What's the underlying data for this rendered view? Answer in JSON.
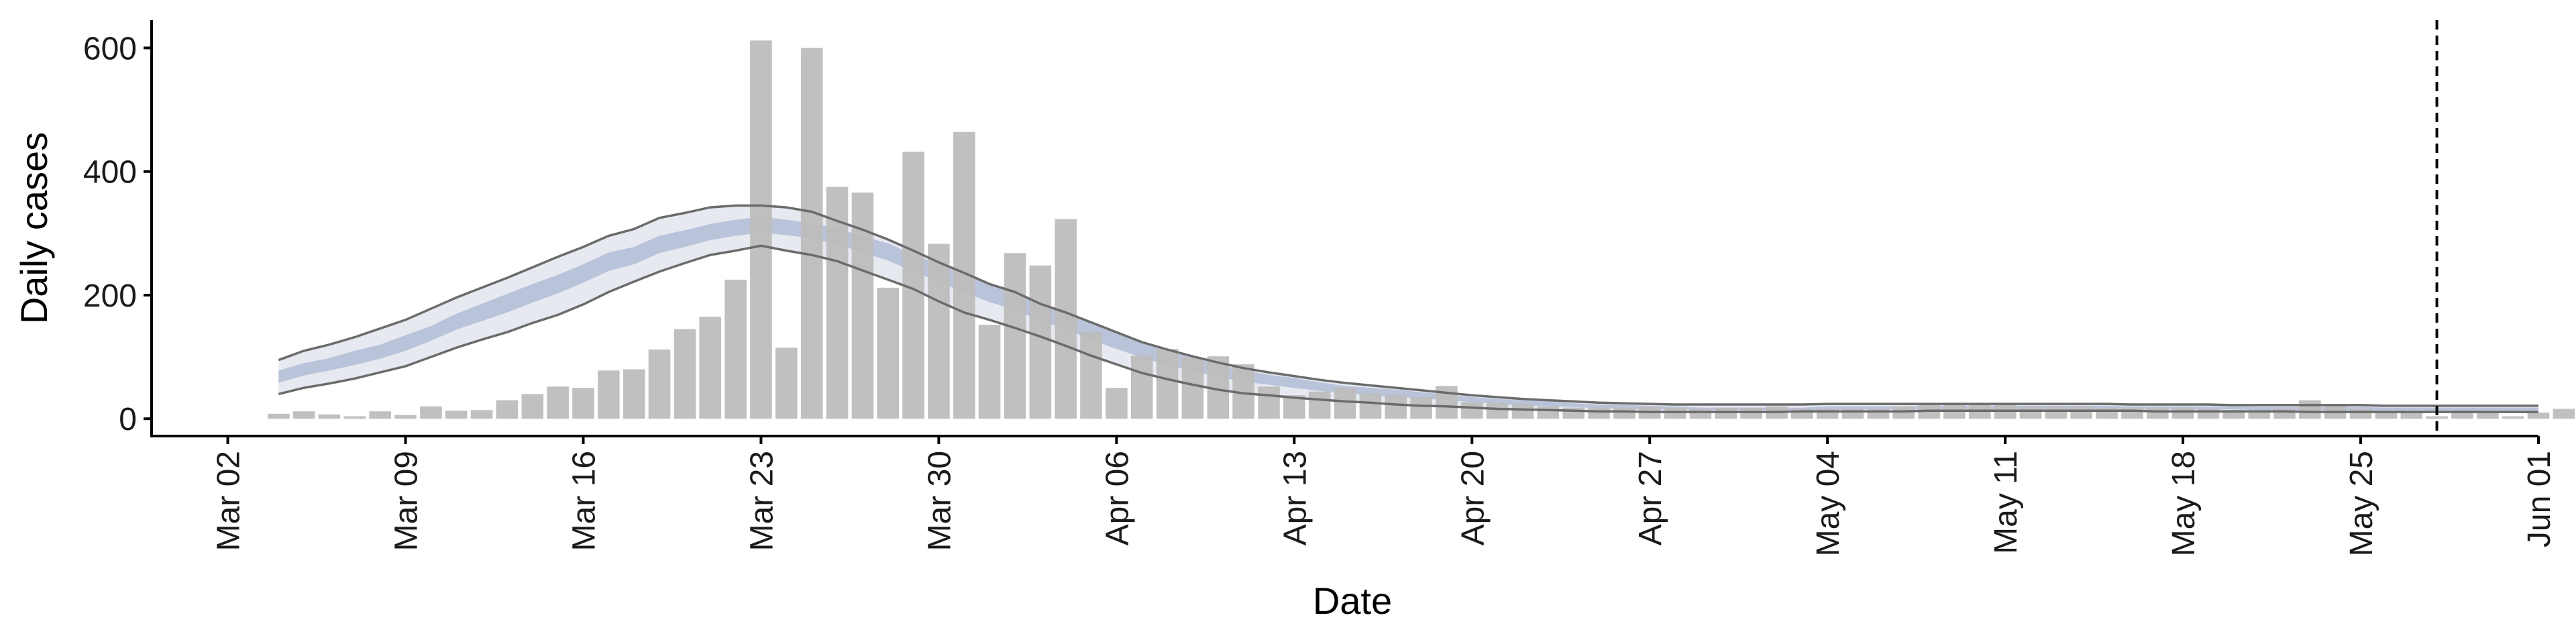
{
  "chart_data": {
    "type": "bar",
    "xlabel": "Date",
    "ylabel": "Daily cases",
    "ylim": [
      -28,
      645
    ],
    "xlim": [
      "2020-02-28",
      "2020-06-01"
    ],
    "y_ticks": [
      0,
      200,
      400,
      600
    ],
    "x_ticks": [
      {
        "date": "2020-03-02",
        "label": "Mar 02"
      },
      {
        "date": "2020-03-09",
        "label": "Mar 09"
      },
      {
        "date": "2020-03-16",
        "label": "Mar 16"
      },
      {
        "date": "2020-03-23",
        "label": "Mar 23"
      },
      {
        "date": "2020-03-30",
        "label": "Mar 30"
      },
      {
        "date": "2020-04-06",
        "label": "Apr 06"
      },
      {
        "date": "2020-04-13",
        "label": "Apr 13"
      },
      {
        "date": "2020-04-20",
        "label": "Apr 20"
      },
      {
        "date": "2020-04-27",
        "label": "Apr 27"
      },
      {
        "date": "2020-05-04",
        "label": "May 04"
      },
      {
        "date": "2020-05-11",
        "label": "May 11"
      },
      {
        "date": "2020-05-18",
        "label": "May 18"
      },
      {
        "date": "2020-05-25",
        "label": "May 25"
      },
      {
        "date": "2020-06-01",
        "label": "Jun 01"
      }
    ],
    "bars": {
      "start_date": "2020-03-04",
      "color": "#bdbdbd",
      "values": [
        8,
        12,
        7,
        4,
        12,
        6,
        20,
        13,
        14,
        30,
        40,
        52,
        50,
        78,
        80,
        112,
        145,
        165,
        225,
        612,
        115,
        600,
        375,
        366,
        212,
        432,
        283,
        464,
        152,
        268,
        248,
        323,
        140,
        50,
        102,
        113,
        99,
        101,
        88,
        52,
        38,
        44,
        50,
        41,
        38,
        35,
        53,
        27,
        25,
        24,
        20,
        18,
        18,
        18,
        20,
        18,
        16,
        18,
        18,
        20,
        16,
        16,
        16,
        16,
        20,
        22,
        24,
        24,
        22,
        20,
        20,
        20,
        18,
        18,
        18,
        18,
        16,
        14,
        14,
        16,
        30,
        20,
        16,
        10,
        12,
        4,
        14,
        12,
        4,
        10,
        16,
        8
      ]
    },
    "band": {
      "start_date": "2020-03-04",
      "outer_color": "#e7e9f1",
      "inner_color": "#b9c3d9",
      "line_color": "#6b6b6b",
      "median": [
        68,
        80,
        88,
        98,
        108,
        122,
        138,
        157,
        172,
        187,
        203,
        218,
        235,
        254,
        264,
        282,
        292,
        302,
        309,
        314,
        309,
        304,
        295,
        282,
        270,
        252,
        236,
        219,
        203,
        190,
        173,
        159,
        141,
        126,
        111,
        99,
        88,
        78,
        69,
        63,
        58,
        52,
        47,
        44,
        41,
        38,
        34,
        31,
        28,
        26,
        24,
        22,
        20,
        19,
        18,
        17,
        16,
        16,
        16,
        16,
        16,
        17,
        17,
        17,
        17,
        18,
        18,
        18,
        18,
        18,
        18,
        18,
        18,
        17,
        17,
        17,
        17,
        17,
        16,
        16,
        16,
        16,
        16,
        15,
        15,
        15,
        15,
        15,
        15,
        15
      ],
      "lower_outer": [
        40,
        50,
        57,
        65,
        75,
        85,
        100,
        115,
        128,
        140,
        155,
        168,
        185,
        205,
        222,
        238,
        252,
        265,
        272,
        280,
        272,
        265,
        255,
        240,
        225,
        210,
        190,
        172,
        160,
        147,
        133,
        118,
        102,
        88,
        74,
        64,
        55,
        47,
        41,
        38,
        34,
        31,
        28,
        26,
        23,
        21,
        20,
        18,
        16,
        15,
        14,
        13,
        12,
        12,
        11,
        11,
        11,
        11,
        11,
        11,
        12,
        12,
        12,
        12,
        12,
        13,
        13,
        13,
        13,
        13,
        13,
        13,
        13,
        13,
        12,
        12,
        12,
        12,
        12,
        12,
        11,
        11,
        11,
        11,
        11,
        11,
        11,
        11,
        11,
        11
      ],
      "upper_outer": [
        95,
        110,
        120,
        132,
        146,
        160,
        178,
        196,
        212,
        228,
        245,
        262,
        278,
        296,
        307,
        325,
        333,
        342,
        345,
        345,
        342,
        335,
        320,
        306,
        290,
        272,
        253,
        236,
        218,
        205,
        186,
        172,
        156,
        140,
        124,
        112,
        101,
        91,
        82,
        75,
        69,
        63,
        58,
        54,
        50,
        46,
        42,
        38,
        35,
        32,
        30,
        28,
        26,
        25,
        24,
        23,
        23,
        23,
        23,
        23,
        23,
        24,
        24,
        24,
        24,
        24,
        24,
        24,
        24,
        24,
        24,
        24,
        24,
        23,
        23,
        23,
        23,
        22,
        22,
        22,
        22,
        22,
        22,
        21,
        21,
        21,
        21,
        21,
        21,
        21
      ],
      "lower_inner": [
        58,
        70,
        78,
        87,
        97,
        110,
        126,
        144,
        158,
        172,
        188,
        203,
        220,
        239,
        250,
        268,
        278,
        289,
        296,
        301,
        297,
        292,
        282,
        269,
        256,
        238,
        222,
        204,
        189,
        176,
        159,
        145,
        128,
        113,
        99,
        87,
        77,
        68,
        60,
        55,
        50,
        45,
        41,
        38,
        35,
        33,
        30,
        27,
        24,
        22,
        20,
        19,
        17,
        16,
        15,
        15,
        14,
        14,
        14,
        14,
        14,
        14,
        15,
        15,
        15,
        15,
        15,
        15,
        15,
        15,
        15,
        15,
        15,
        15,
        15,
        15,
        15,
        15,
        14,
        14,
        14,
        14,
        13,
        13,
        13,
        13,
        13,
        13,
        13,
        13
      ],
      "upper_inner": [
        78,
        90,
        98,
        110,
        120,
        135,
        150,
        170,
        186,
        202,
        218,
        233,
        250,
        269,
        278,
        296,
        305,
        315,
        322,
        327,
        322,
        316,
        308,
        295,
        284,
        266,
        250,
        234,
        217,
        204,
        187,
        173,
        154,
        139,
        123,
        111,
        99,
        88,
        78,
        71,
        66,
        59,
        53,
        50,
        47,
        43,
        39,
        35,
        32,
        30,
        28,
        25,
        23,
        22,
        21,
        20,
        18,
        18,
        18,
        18,
        18,
        20,
        20,
        20,
        20,
        21,
        21,
        21,
        21,
        21,
        21,
        21,
        21,
        20,
        20,
        20,
        20,
        20,
        19,
        19,
        19,
        19,
        19,
        18,
        18,
        18,
        18,
        18,
        18,
        18
      ]
    },
    "vline": {
      "date": "2020-05-28",
      "style": "dashed"
    },
    "grid": false,
    "legend": "none"
  }
}
